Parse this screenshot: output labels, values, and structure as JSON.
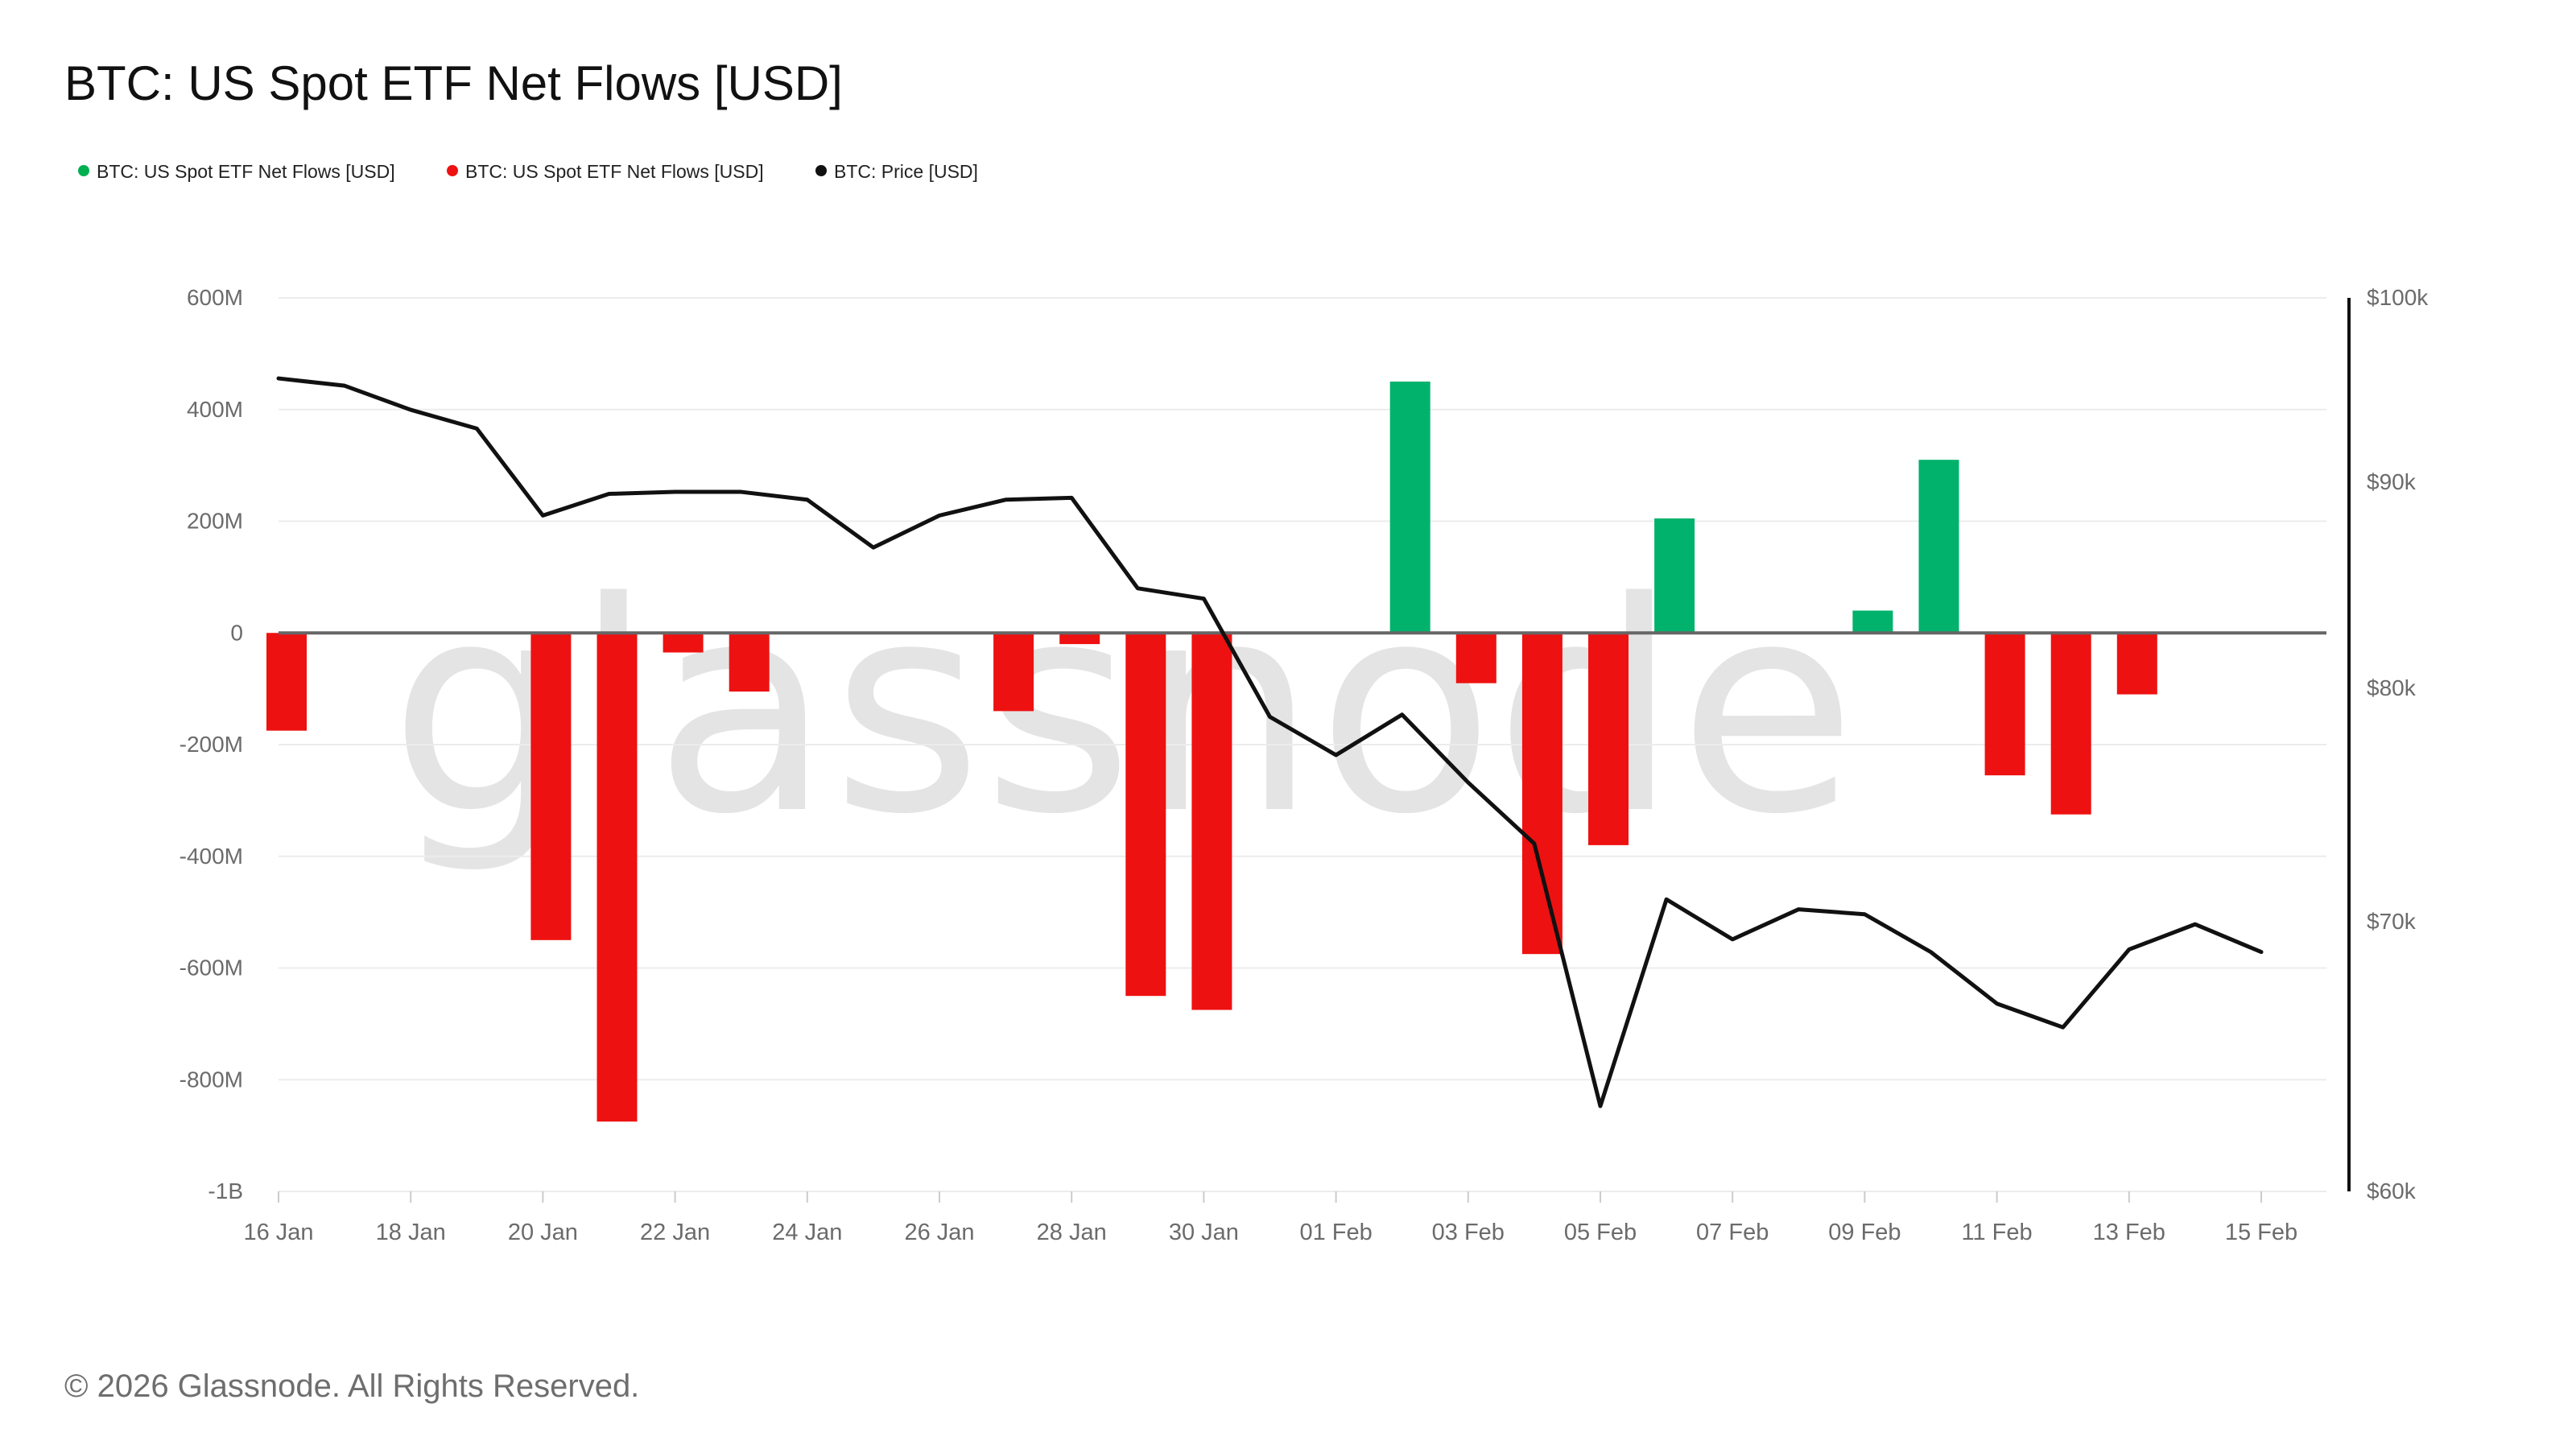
{
  "title": "BTC: US Spot ETF Net Flows [USD]",
  "watermark": "glassnode",
  "footer": "© 2026 Glassnode. All Rights Reserved.",
  "legend": [
    {
      "label": "BTC: US Spot ETF Net Flows [USD]",
      "color": "#00b050"
    },
    {
      "label": "BTC: US Spot ETF Net Flows [USD]",
      "color": "#ee1111"
    },
    {
      "label": "BTC: Price [USD]",
      "color": "#111111"
    }
  ],
  "colors": {
    "inflow": "#00b26b",
    "outflow": "#ee1111",
    "price": "#111111",
    "grid": "#ececec",
    "zero": "#666666"
  },
  "chart_data": {
    "type": "bar",
    "x": [
      "16 Jan",
      "17 Jan",
      "18 Jan",
      "19 Jan",
      "20 Jan",
      "21 Jan",
      "22 Jan",
      "23 Jan",
      "24 Jan",
      "25 Jan",
      "26 Jan",
      "27 Jan",
      "28 Jan",
      "29 Jan",
      "30 Jan",
      "31 Jan",
      "01 Feb",
      "02 Feb",
      "03 Feb",
      "04 Feb",
      "05 Feb",
      "06 Feb",
      "07 Feb",
      "08 Feb",
      "09 Feb",
      "10 Feb",
      "11 Feb",
      "12 Feb",
      "13 Feb",
      "14 Feb",
      "15 Feb"
    ],
    "x_tick_labels": [
      "16 Jan",
      "18 Jan",
      "20 Jan",
      "22 Jan",
      "24 Jan",
      "26 Jan",
      "28 Jan",
      "30 Jan",
      "01 Feb",
      "03 Feb",
      "05 Feb",
      "07 Feb",
      "09 Feb",
      "11 Feb",
      "13 Feb",
      "15 Feb"
    ],
    "x_tick_indices": [
      0,
      2,
      4,
      6,
      8,
      10,
      12,
      14,
      16,
      18,
      20,
      22,
      24,
      26,
      28,
      30
    ],
    "series": [
      {
        "name": "BTC: US Spot ETF Net Flows [USD]",
        "axis": "left",
        "kind": "bar",
        "values": [
          -175,
          null,
          null,
          null,
          -550,
          -875,
          -35,
          -105,
          null,
          null,
          null,
          -140,
          -20,
          -650,
          -675,
          null,
          null,
          450,
          -90,
          -575,
          -380,
          205,
          null,
          null,
          40,
          310,
          -255,
          -325,
          -110,
          null,
          null
        ]
      },
      {
        "name": "BTC: Price [USD]",
        "axis": "right",
        "kind": "line",
        "values": [
          95500,
          95100,
          93800,
          92800,
          88300,
          89400,
          89500,
          89500,
          89100,
          86700,
          88300,
          89100,
          89200,
          84700,
          84200,
          78700,
          77000,
          78800,
          75800,
          73200,
          63000,
          70900,
          69300,
          70500,
          70300,
          68800,
          66800,
          65900,
          68900,
          69900,
          68800
        ]
      }
    ],
    "left_axis": {
      "unit": "USD",
      "ylim": [
        -1000,
        600
      ],
      "scale": "M",
      "ticks": [
        600,
        400,
        200,
        0,
        -200,
        -400,
        -600,
        -800,
        -1000
      ],
      "tick_labels": [
        "600M",
        "400M",
        "200M",
        "0",
        "-200M",
        "-400M",
        "-600M",
        "-800M",
        "-1B"
      ]
    },
    "right_axis": {
      "unit": "USD",
      "ticks": [
        100000,
        90000,
        80000,
        70000,
        60000
      ],
      "tick_labels": [
        "$100k",
        "$90k",
        "$80k",
        "$70k",
        "$60k"
      ],
      "scale": "log"
    },
    "grid": true,
    "legend_position": "top-left"
  }
}
